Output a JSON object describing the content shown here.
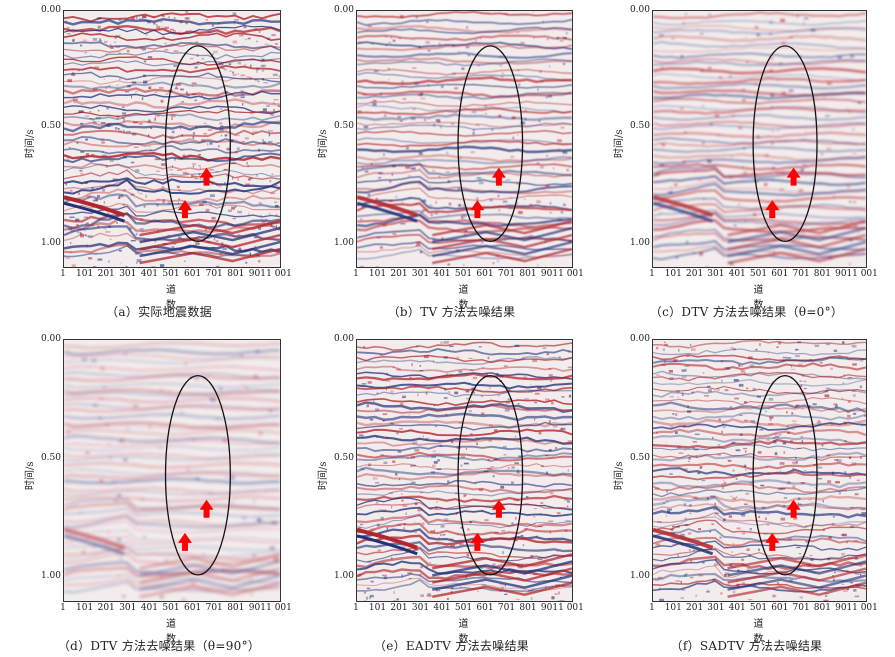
{
  "figure": {
    "y_axis_label": "时间/s",
    "x_axis_label": "道数",
    "y_ticks": [
      "0.00",
      "0.50",
      "1.00"
    ],
    "x_ticks": [
      "1",
      "101",
      "201",
      "301",
      "401",
      "501",
      "601",
      "701",
      "801",
      "901",
      "1 001"
    ],
    "colors": {
      "red": "#b3262e",
      "blue": "#23337a",
      "background": "#f2ecec",
      "arrow": "#ff0000",
      "ellipse": "#111111"
    },
    "panels": [
      {
        "id": "a",
        "caption": "（a）实际地震数据"
      },
      {
        "id": "b",
        "caption": "（b）TV 方法去噪结果"
      },
      {
        "id": "c",
        "caption": "（c）DTV 方法去噪结果（θ=0°）"
      },
      {
        "id": "d",
        "caption": "（d）DTV 方法去噪结果（θ=90°）"
      },
      {
        "id": "e",
        "caption": "（e）EADTV 方法去噪结果"
      },
      {
        "id": "f",
        "caption": "（f）SADTV 方法去噪结果"
      }
    ]
  }
}
